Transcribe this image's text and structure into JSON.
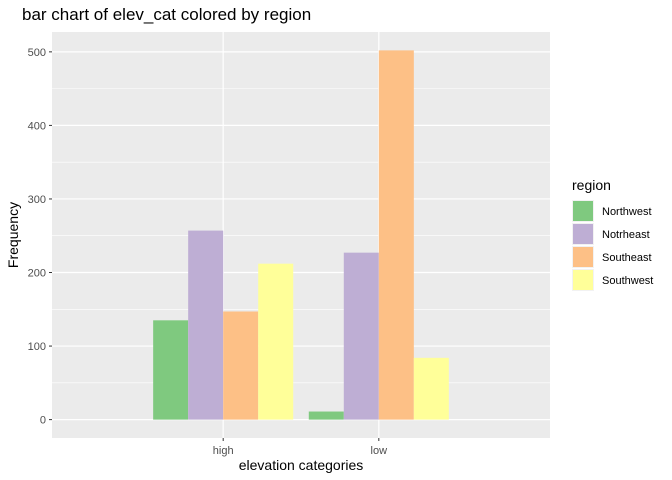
{
  "chart_data": {
    "type": "bar",
    "title": "bar chart of elev_cat colored by region",
    "xlabel": "elevation categories",
    "ylabel": "Frequency",
    "categories": [
      "high",
      "low"
    ],
    "series": [
      {
        "name": "Northwest",
        "color": "#7fc97f",
        "values": [
          135,
          11
        ]
      },
      {
        "name": "Notrheast",
        "color": "#beaed4",
        "values": [
          257,
          227
        ]
      },
      {
        "name": "Southeast",
        "color": "#fdc086",
        "values": [
          147,
          502
        ]
      },
      {
        "name": "Southwest",
        "color": "#ffff99",
        "values": [
          212,
          84
        ]
      }
    ],
    "ylim": [
      -25,
      527
    ],
    "yticks": [
      0,
      100,
      200,
      300,
      400,
      500
    ],
    "grid": true,
    "legend": {
      "title": "region",
      "position": "right"
    },
    "panel_background": "#ebebeb"
  }
}
